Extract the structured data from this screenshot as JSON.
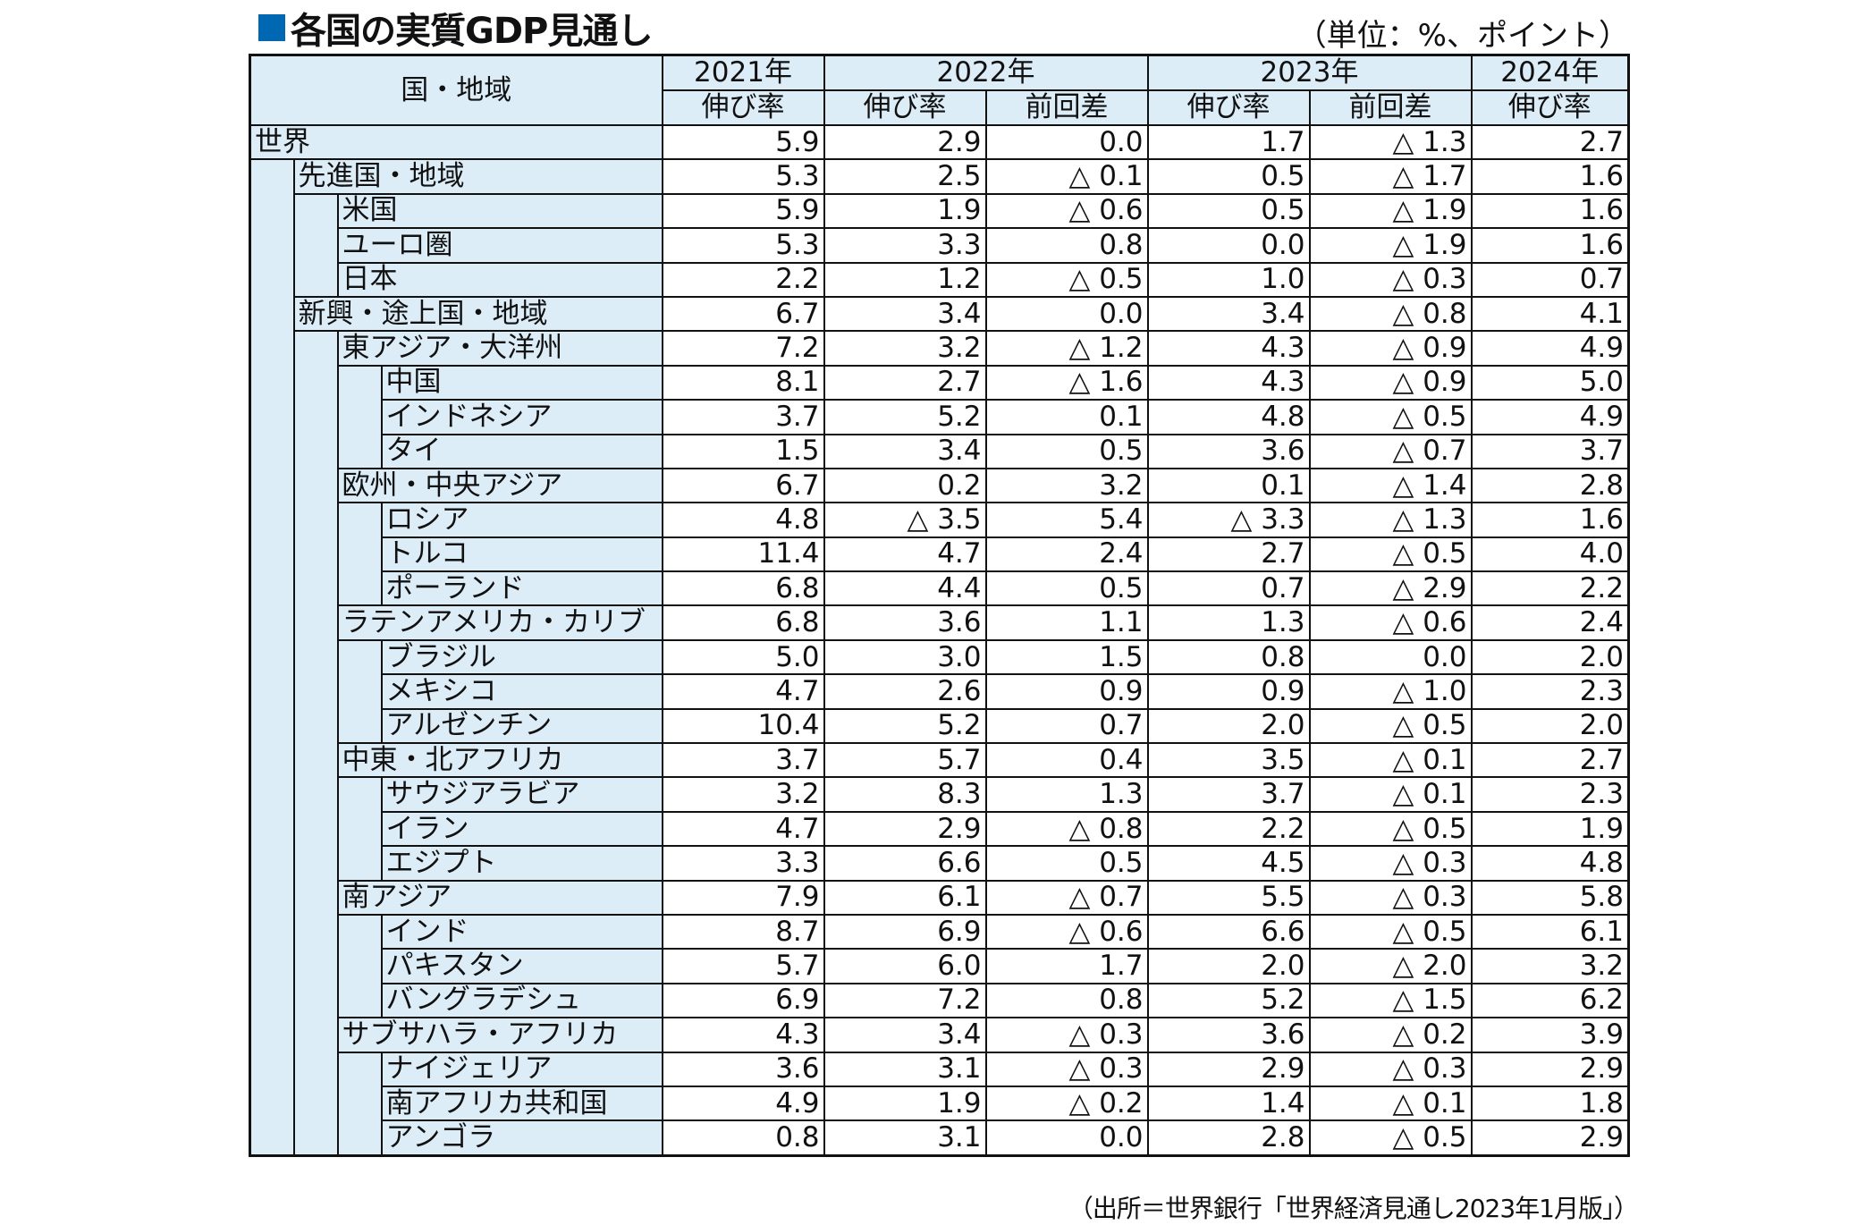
{
  "title": "各国の実質GDP見通し",
  "unit": "（単位：%、ポイント）",
  "source": "（出所＝世界銀行「世界経済見通し2023年1月版」）",
  "colors": {
    "header_bg": "#dcedf8",
    "title_square": "#0067b3"
  },
  "header": {
    "region": "国・地域",
    "years": [
      "2021年",
      "2022年",
      "2023年",
      "2024年"
    ],
    "growth": "伸び率",
    "diff": "前回差"
  },
  "rows": [
    {
      "name": "世界",
      "level": 0,
      "v": [
        "5.9",
        "2.9",
        "0.0",
        "1.7",
        "△ 1.3",
        "2.7"
      ]
    },
    {
      "name": "先進国・地域",
      "level": 1,
      "v": [
        "5.3",
        "2.5",
        "△ 0.1",
        "0.5",
        "△ 1.7",
        "1.6"
      ]
    },
    {
      "name": "米国",
      "level": 2,
      "v": [
        "5.9",
        "1.9",
        "△ 0.6",
        "0.5",
        "△ 1.9",
        "1.6"
      ]
    },
    {
      "name": "ユーロ圏",
      "level": 2,
      "v": [
        "5.3",
        "3.3",
        "0.8",
        "0.0",
        "△ 1.9",
        "1.6"
      ]
    },
    {
      "name": "日本",
      "level": 2,
      "v": [
        "2.2",
        "1.2",
        "△ 0.5",
        "1.0",
        "△ 0.3",
        "0.7"
      ]
    },
    {
      "name": "新興・途上国・地域",
      "level": 1,
      "v": [
        "6.7",
        "3.4",
        "0.0",
        "3.4",
        "△ 0.8",
        "4.1"
      ]
    },
    {
      "name": "東アジア・大洋州",
      "level": 2,
      "v": [
        "7.2",
        "3.2",
        "△ 1.2",
        "4.3",
        "△ 0.9",
        "4.9"
      ]
    },
    {
      "name": "中国",
      "level": 3,
      "v": [
        "8.1",
        "2.7",
        "△ 1.6",
        "4.3",
        "△ 0.9",
        "5.0"
      ]
    },
    {
      "name": "インドネシア",
      "level": 3,
      "v": [
        "3.7",
        "5.2",
        "0.1",
        "4.8",
        "△ 0.5",
        "4.9"
      ]
    },
    {
      "name": "タイ",
      "level": 3,
      "v": [
        "1.5",
        "3.4",
        "0.5",
        "3.6",
        "△ 0.7",
        "3.7"
      ]
    },
    {
      "name": "欧州・中央アジア",
      "level": 2,
      "v": [
        "6.7",
        "0.2",
        "3.2",
        "0.1",
        "△ 1.4",
        "2.8"
      ]
    },
    {
      "name": "ロシア",
      "level": 3,
      "v": [
        "4.8",
        "△ 3.5",
        "5.4",
        "△ 3.3",
        "△ 1.3",
        "1.6"
      ]
    },
    {
      "name": "トルコ",
      "level": 3,
      "v": [
        "11.4",
        "4.7",
        "2.4",
        "2.7",
        "△ 0.5",
        "4.0"
      ]
    },
    {
      "name": "ポーランド",
      "level": 3,
      "v": [
        "6.8",
        "4.4",
        "0.5",
        "0.7",
        "△ 2.9",
        "2.2"
      ]
    },
    {
      "name": "ラテンアメリカ・カリブ",
      "level": 2,
      "v": [
        "6.8",
        "3.6",
        "1.1",
        "1.3",
        "△ 0.6",
        "2.4"
      ]
    },
    {
      "name": "ブラジル",
      "level": 3,
      "v": [
        "5.0",
        "3.0",
        "1.5",
        "0.8",
        "0.0",
        "2.0"
      ]
    },
    {
      "name": "メキシコ",
      "level": 3,
      "v": [
        "4.7",
        "2.6",
        "0.9",
        "0.9",
        "△ 1.0",
        "2.3"
      ]
    },
    {
      "name": "アルゼンチン",
      "level": 3,
      "v": [
        "10.4",
        "5.2",
        "0.7",
        "2.0",
        "△ 0.5",
        "2.0"
      ]
    },
    {
      "name": "中東・北アフリカ",
      "level": 2,
      "v": [
        "3.7",
        "5.7",
        "0.4",
        "3.5",
        "△ 0.1",
        "2.7"
      ]
    },
    {
      "name": "サウジアラビア",
      "level": 3,
      "v": [
        "3.2",
        "8.3",
        "1.3",
        "3.7",
        "△ 0.1",
        "2.3"
      ]
    },
    {
      "name": "イラン",
      "level": 3,
      "v": [
        "4.7",
        "2.9",
        "△ 0.8",
        "2.2",
        "△ 0.5",
        "1.9"
      ]
    },
    {
      "name": "エジプト",
      "level": 3,
      "v": [
        "3.3",
        "6.6",
        "0.5",
        "4.5",
        "△ 0.3",
        "4.8"
      ]
    },
    {
      "name": "南アジア",
      "level": 2,
      "v": [
        "7.9",
        "6.1",
        "△ 0.7",
        "5.5",
        "△ 0.3",
        "5.8"
      ]
    },
    {
      "name": "インド",
      "level": 3,
      "v": [
        "8.7",
        "6.9",
        "△ 0.6",
        "6.6",
        "△ 0.5",
        "6.1"
      ]
    },
    {
      "name": "パキスタン",
      "level": 3,
      "v": [
        "5.7",
        "6.0",
        "1.7",
        "2.0",
        "△ 2.0",
        "3.2"
      ]
    },
    {
      "name": "バングラデシュ",
      "level": 3,
      "v": [
        "6.9",
        "7.2",
        "0.8",
        "5.2",
        "△ 1.5",
        "6.2"
      ]
    },
    {
      "name": "サブサハラ・アフリカ",
      "level": 2,
      "v": [
        "4.3",
        "3.4",
        "△ 0.3",
        "3.6",
        "△ 0.2",
        "3.9"
      ]
    },
    {
      "name": "ナイジェリア",
      "level": 3,
      "v": [
        "3.6",
        "3.1",
        "△ 0.3",
        "2.9",
        "△ 0.3",
        "2.9"
      ]
    },
    {
      "name": "南アフリカ共和国",
      "level": 3,
      "v": [
        "4.9",
        "1.9",
        "△ 0.2",
        "1.4",
        "△ 0.1",
        "1.8"
      ]
    },
    {
      "name": "アンゴラ",
      "level": 3,
      "v": [
        "0.8",
        "3.1",
        "0.0",
        "2.8",
        "△ 0.5",
        "2.9"
      ]
    }
  ]
}
